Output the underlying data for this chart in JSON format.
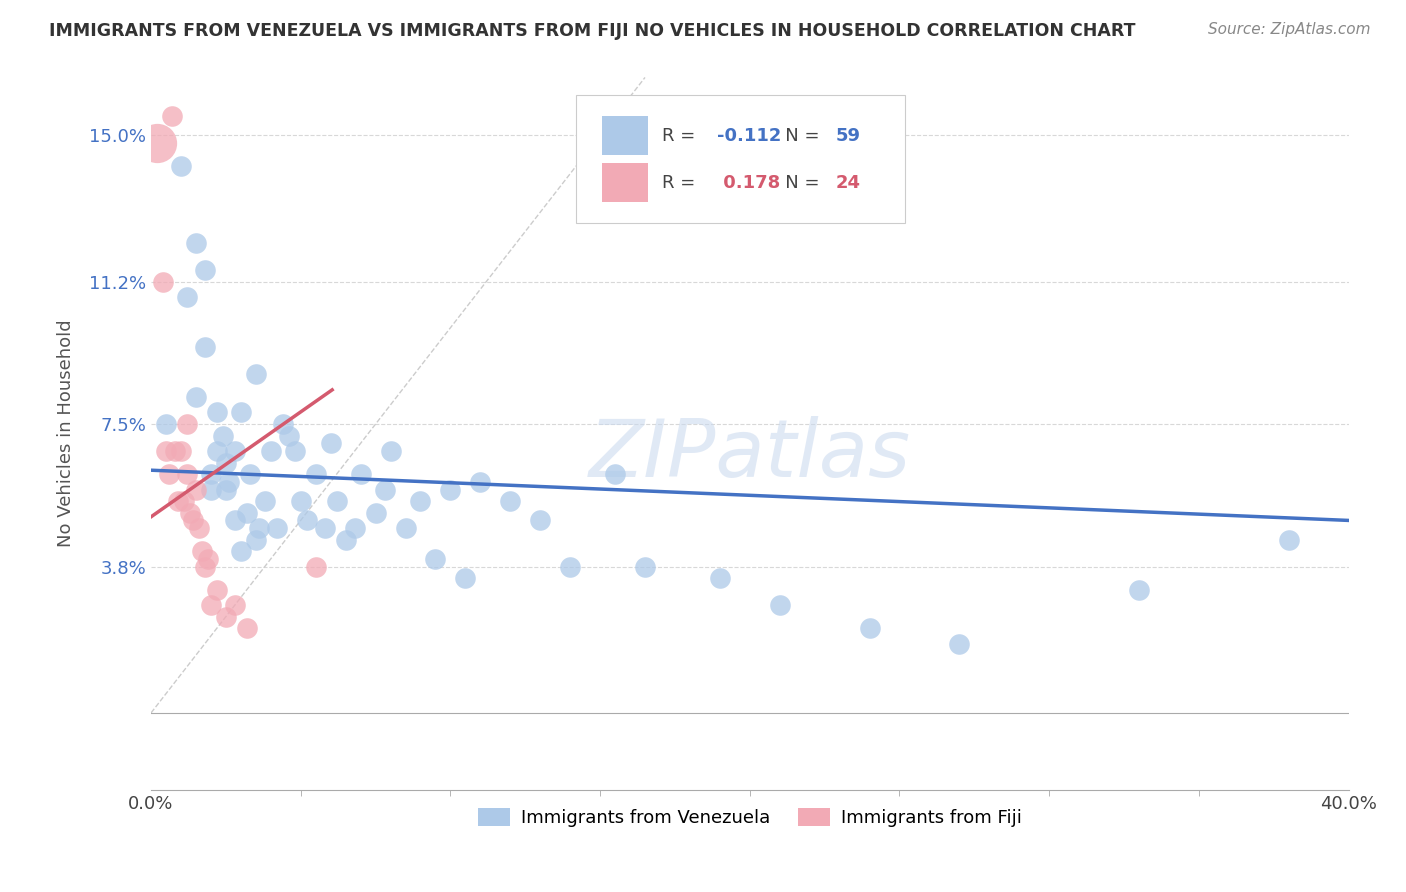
{
  "title": "IMMIGRANTS FROM VENEZUELA VS IMMIGRANTS FROM FIJI NO VEHICLES IN HOUSEHOLD CORRELATION CHART",
  "source": "Source: ZipAtlas.com",
  "ylabel": "No Vehicles in Household",
  "xlim": [
    0.0,
    0.4
  ],
  "ylim": [
    -0.02,
    0.165
  ],
  "yticks": [
    0.038,
    0.075,
    0.112,
    0.15
  ],
  "ytick_labels": [
    "3.8%",
    "7.5%",
    "11.2%",
    "15.0%"
  ],
  "grid_color": "#d8d8d8",
  "background_color": "#ffffff",
  "venezuela_color": "#adc9e8",
  "fiji_color": "#f2aab5",
  "venezuela_line_color": "#4472c4",
  "fiji_line_color": "#d45a6e",
  "R_venezuela": -0.112,
  "N_venezuela": 59,
  "R_fiji": 0.178,
  "N_fiji": 24,
  "venezuela_x": [
    0.005,
    0.01,
    0.012,
    0.015,
    0.015,
    0.018,
    0.018,
    0.02,
    0.02,
    0.022,
    0.022,
    0.024,
    0.025,
    0.025,
    0.026,
    0.028,
    0.028,
    0.03,
    0.03,
    0.032,
    0.033,
    0.035,
    0.035,
    0.036,
    0.038,
    0.04,
    0.042,
    0.044,
    0.046,
    0.048,
    0.05,
    0.052,
    0.055,
    0.058,
    0.06,
    0.062,
    0.065,
    0.068,
    0.07,
    0.075,
    0.078,
    0.08,
    0.085,
    0.09,
    0.095,
    0.1,
    0.105,
    0.11,
    0.12,
    0.13,
    0.14,
    0.155,
    0.165,
    0.19,
    0.21,
    0.24,
    0.27,
    0.33,
    0.38
  ],
  "venezuela_y": [
    0.075,
    0.142,
    0.108,
    0.122,
    0.082,
    0.115,
    0.095,
    0.062,
    0.058,
    0.078,
    0.068,
    0.072,
    0.065,
    0.058,
    0.06,
    0.068,
    0.05,
    0.078,
    0.042,
    0.052,
    0.062,
    0.045,
    0.088,
    0.048,
    0.055,
    0.068,
    0.048,
    0.075,
    0.072,
    0.068,
    0.055,
    0.05,
    0.062,
    0.048,
    0.07,
    0.055,
    0.045,
    0.048,
    0.062,
    0.052,
    0.058,
    0.068,
    0.048,
    0.055,
    0.04,
    0.058,
    0.035,
    0.06,
    0.055,
    0.05,
    0.038,
    0.062,
    0.038,
    0.035,
    0.028,
    0.022,
    0.018,
    0.032,
    0.045
  ],
  "fiji_x": [
    0.002,
    0.004,
    0.005,
    0.006,
    0.007,
    0.008,
    0.009,
    0.01,
    0.011,
    0.012,
    0.012,
    0.013,
    0.014,
    0.015,
    0.016,
    0.017,
    0.018,
    0.019,
    0.02,
    0.022,
    0.025,
    0.028,
    0.032,
    0.055
  ],
  "fiji_y": [
    0.148,
    0.112,
    0.068,
    0.062,
    0.155,
    0.068,
    0.055,
    0.068,
    0.055,
    0.062,
    0.075,
    0.052,
    0.05,
    0.058,
    0.048,
    0.042,
    0.038,
    0.04,
    0.028,
    0.032,
    0.025,
    0.028,
    0.022,
    0.038
  ],
  "fiji_large_idx": 0,
  "fiji_large_size": 800
}
